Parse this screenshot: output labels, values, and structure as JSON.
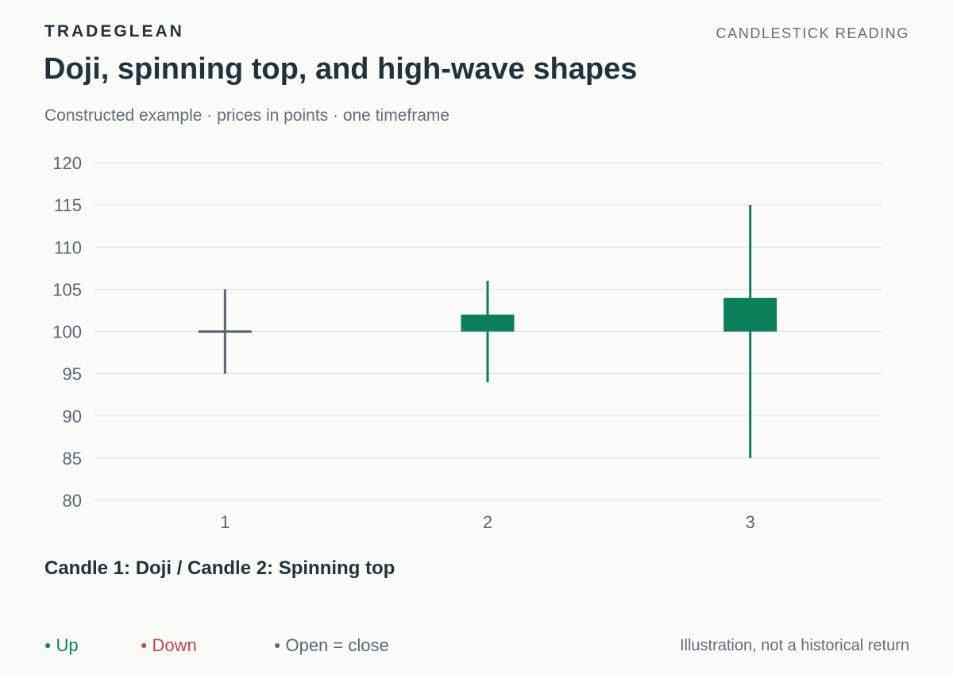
{
  "header": {
    "brand": "TRADEGLEAN",
    "section": "CANDLESTICK READING",
    "title": "Doji, spinning top, and high-wave shapes",
    "subtitle": "Constructed example · prices in points · one timeframe"
  },
  "chart_data": {
    "type": "candlestick",
    "categories": [
      "1",
      "2",
      "3"
    ],
    "candles": [
      {
        "x": "1",
        "open": 100,
        "high": 105,
        "low": 95,
        "close": 100,
        "direction": "flat"
      },
      {
        "x": "2",
        "open": 100,
        "high": 106,
        "low": 94,
        "close": 102,
        "direction": "up"
      },
      {
        "x": "3",
        "open": 100,
        "high": 115,
        "low": 85,
        "close": 104,
        "direction": "up"
      }
    ],
    "ylim": [
      80,
      120
    ],
    "yticks": [
      80,
      85,
      90,
      95,
      100,
      105,
      110,
      115,
      120
    ],
    "grid": true,
    "colors": {
      "up": "#0b7f5c",
      "down": "#c8444b",
      "flat": "#56677a",
      "grid": "#dde2e8",
      "tick": "#56677a"
    }
  },
  "annotation": "Candle 1: Doji / Candle 2: Spinning top",
  "legend": {
    "up": {
      "label": "Up",
      "color": "#0b7f5c"
    },
    "down": {
      "label": "Down",
      "color": "#c8444b"
    },
    "flat": {
      "label": "Open = close",
      "color": "#56677a"
    }
  },
  "footnote": "Illustration, not a historical return"
}
